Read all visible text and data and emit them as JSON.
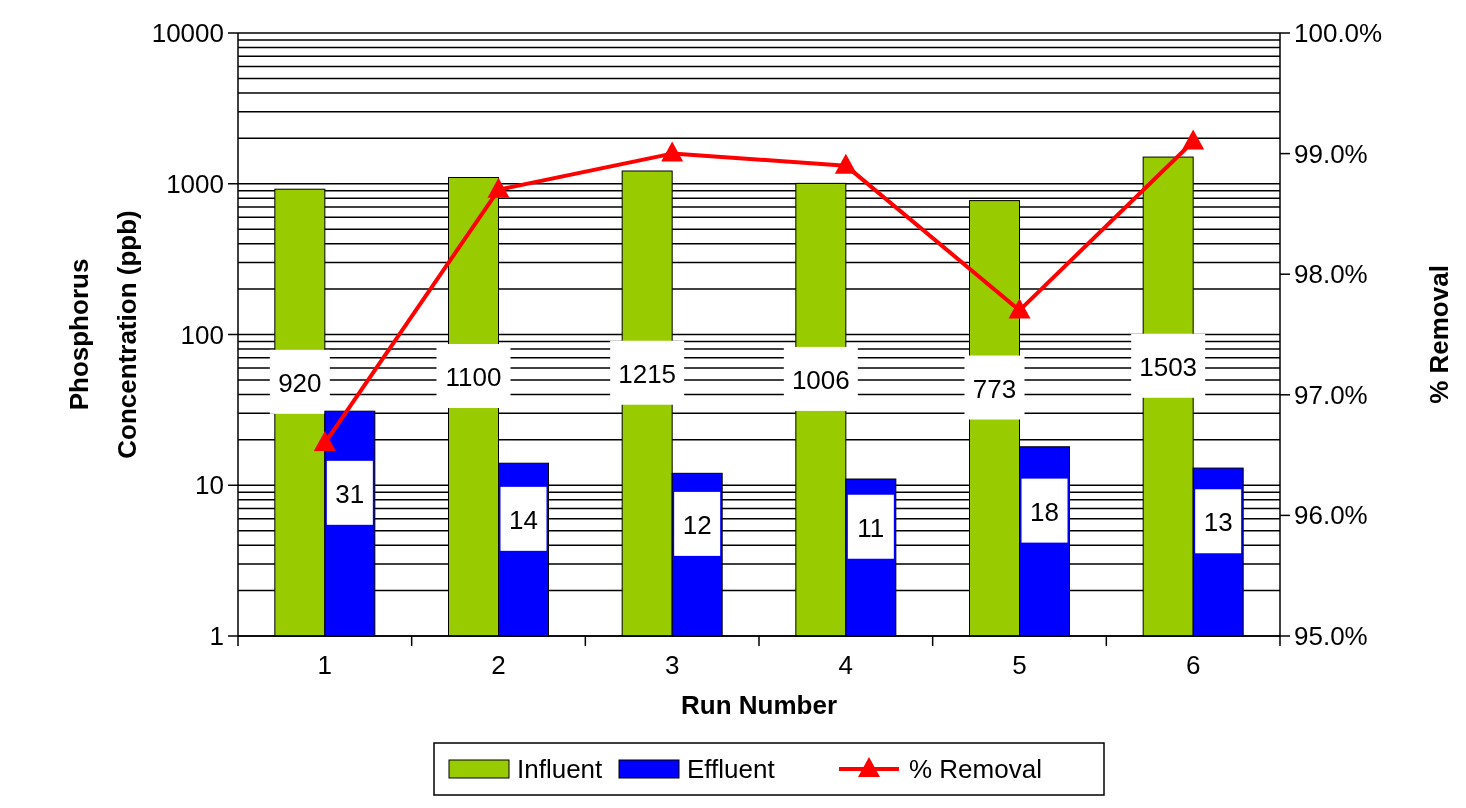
{
  "chart_data": {
    "type": "bar",
    "xlabel": "Run Number",
    "ylabel": "Phosphorus Concentration (ppb)",
    "y2label": "% Removal",
    "categories": [
      "1",
      "2",
      "3",
      "4",
      "5",
      "6"
    ],
    "series": [
      {
        "name": "Influent",
        "color": "#99cc00",
        "values": [
          920,
          1100,
          1215,
          1006,
          773,
          1503
        ],
        "value_labels": [
          "920",
          "1100",
          "1215",
          "1006",
          "773",
          "1503"
        ]
      },
      {
        "name": "Effluent",
        "color": "#0000ff",
        "values": [
          31,
          14,
          12,
          11,
          18,
          13
        ],
        "value_labels": [
          "31",
          "14",
          "12",
          "11",
          "18",
          "13"
        ]
      },
      {
        "name": "% Removal",
        "type": "line",
        "axis": "y2",
        "color": "#ff0000",
        "marker": "triangle",
        "values": [
          96.6,
          98.7,
          99.0,
          98.9,
          97.7,
          99.1
        ]
      }
    ],
    "log": "y",
    "ylim": [
      1,
      10000
    ],
    "yticks": [
      1,
      10,
      100,
      1000,
      10000
    ],
    "y2lim": [
      95,
      100
    ],
    "y2ticks": [
      {
        "value": 95,
        "label": "95.0%"
      },
      {
        "value": 96,
        "label": "96.0%"
      },
      {
        "value": 97,
        "label": "97.0%"
      },
      {
        "value": 98,
        "label": "98.0%"
      },
      {
        "value": 99,
        "label": "99.0%"
      },
      {
        "value": 100,
        "label": "100.0%"
      }
    ],
    "grid": "y",
    "legend": "bottom"
  }
}
